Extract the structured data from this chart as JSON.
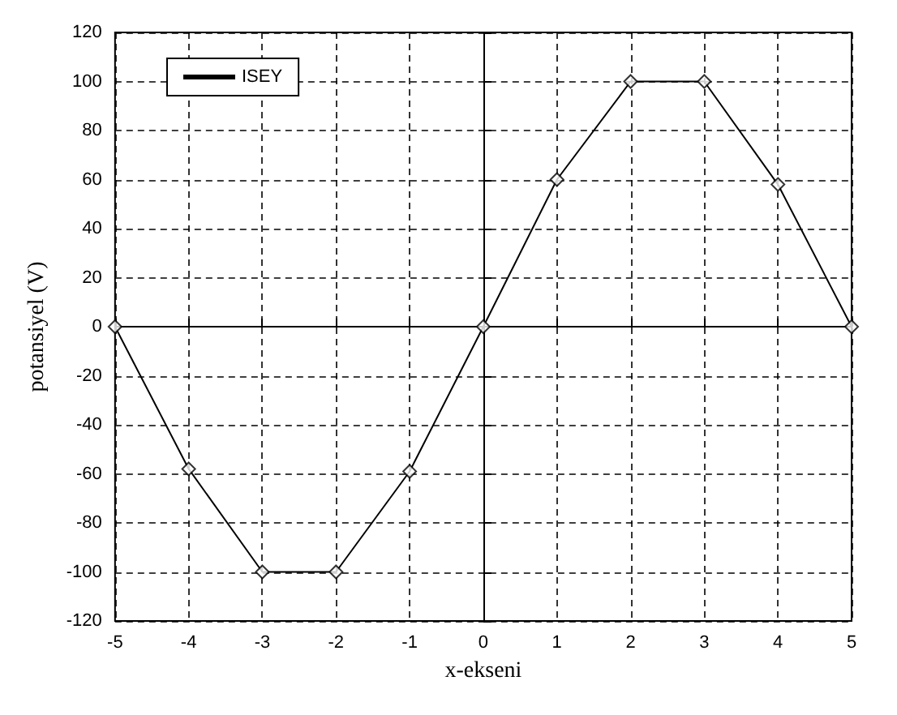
{
  "chart_data": {
    "type": "line",
    "xlabel": "x-ekseni",
    "ylabel": "potansiyel (V)",
    "x": [
      -5,
      -4,
      -3,
      -2,
      -1,
      0,
      1,
      2,
      3,
      4,
      5
    ],
    "series": [
      {
        "name": "ISEY",
        "color": "#000000",
        "marker": "none",
        "values": [
          0,
          -58,
          -100,
          -100,
          -59,
          0,
          60,
          100,
          100,
          58,
          0
        ]
      },
      {
        "type": "scatter",
        "color": "#000000",
        "marker": "diamond",
        "values": [
          0,
          -58,
          -100,
          -100,
          -59,
          0,
          60,
          100,
          100,
          58,
          0
        ]
      }
    ],
    "xlim": [
      -5,
      5
    ],
    "xticks": [
      -5,
      -4,
      -3,
      -2,
      -1,
      0,
      1,
      2,
      3,
      4,
      5
    ],
    "ylim": [
      -120,
      120
    ],
    "yticks": [
      -120,
      -100,
      -80,
      -60,
      -40,
      -20,
      0,
      20,
      40,
      60,
      80,
      100,
      120
    ],
    "grid": true,
    "legend": "top left",
    "line_style": "solid"
  }
}
